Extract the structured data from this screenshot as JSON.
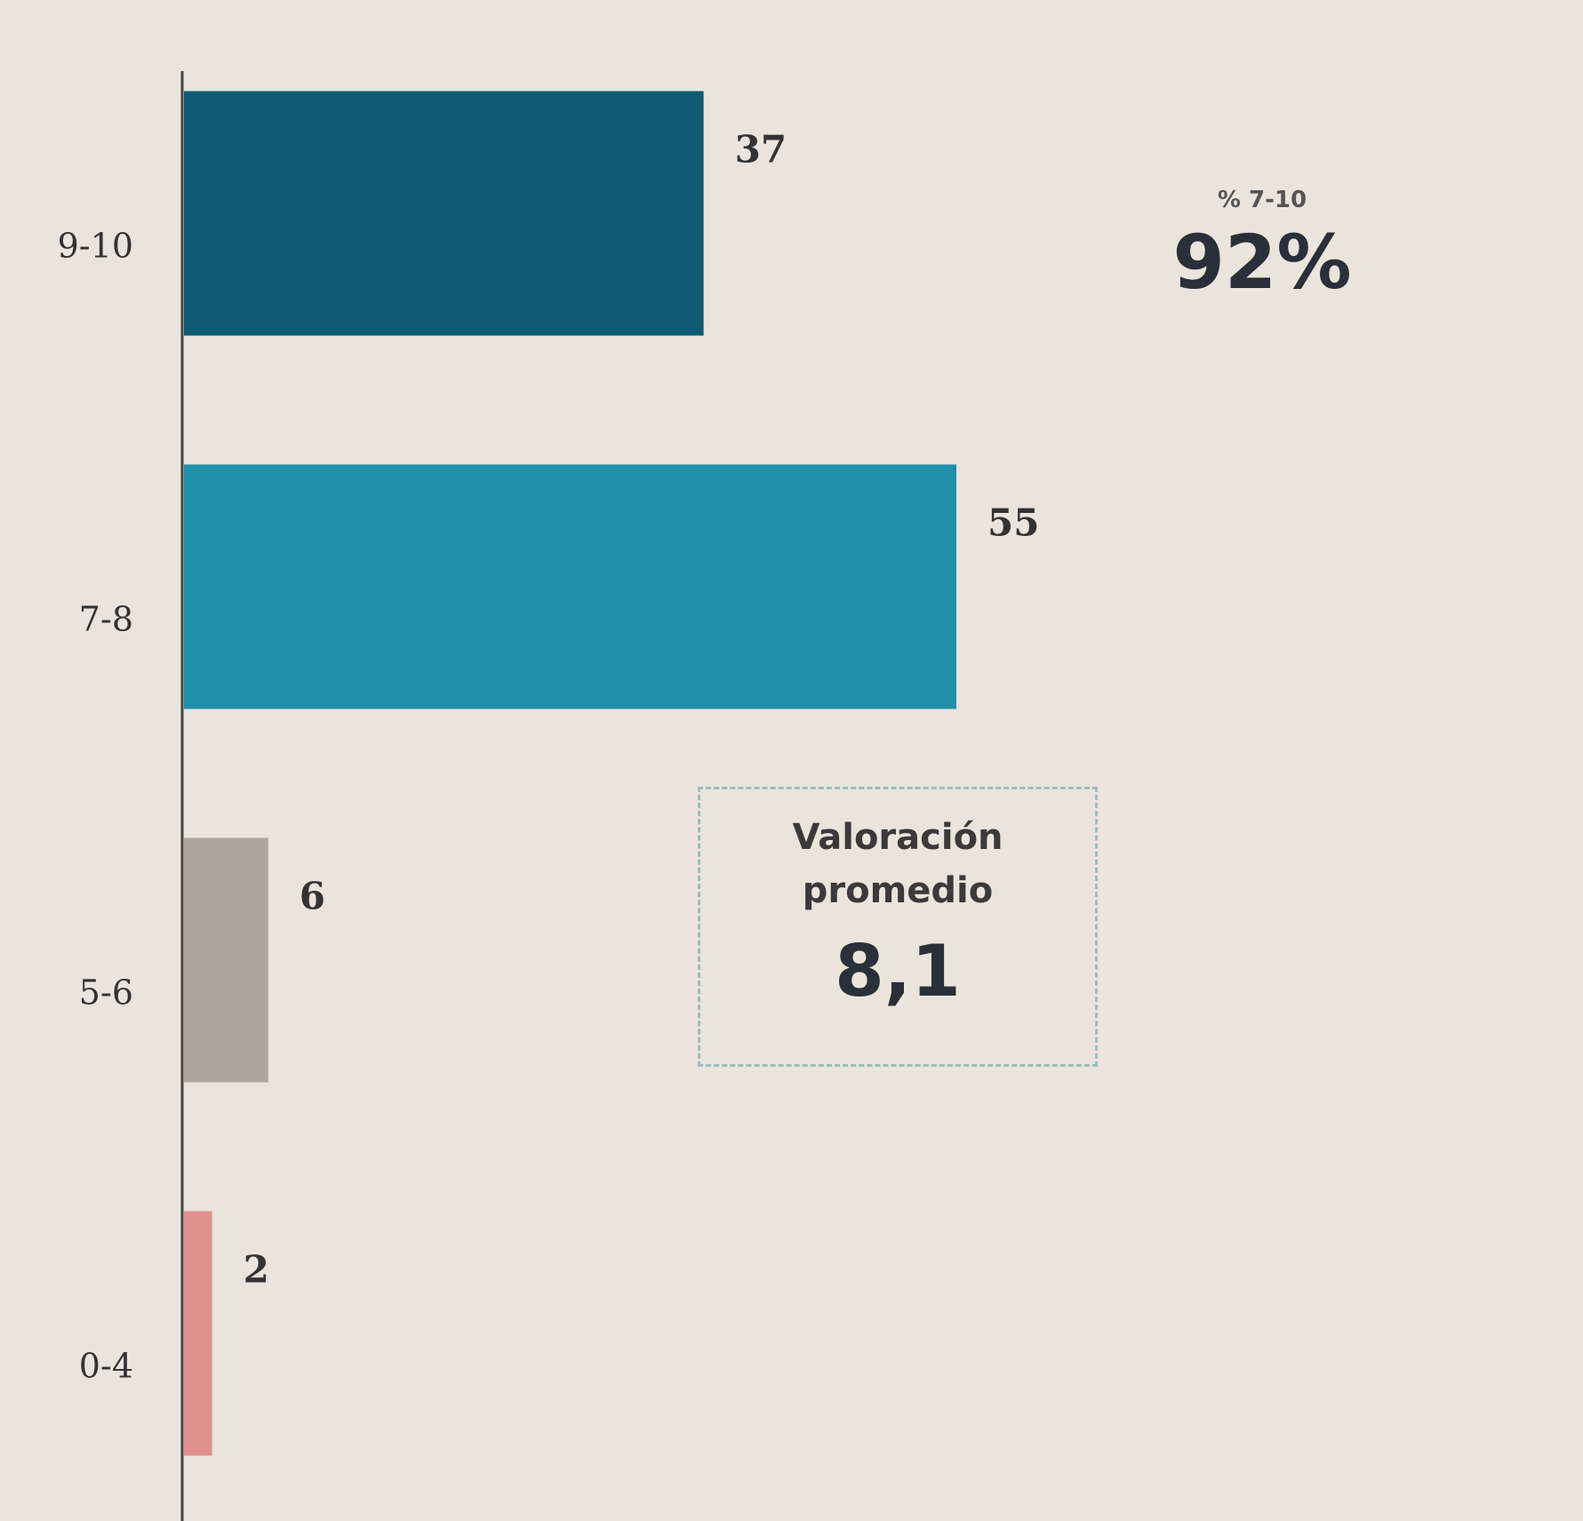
{
  "chart_data": {
    "type": "bar",
    "orientation": "horizontal",
    "categories": [
      "9-10",
      "7-8",
      "5-6",
      "0-4"
    ],
    "values": [
      37,
      55,
      6,
      2
    ],
    "colors": [
      "#0f5a74",
      "#1f90aa",
      "#aca69d",
      "#e2918f"
    ],
    "annotations": [
      {
        "label": "% 7-10",
        "text": "92%"
      },
      {
        "label": "Valoración promedio",
        "text": "8,1"
      }
    ]
  }
}
